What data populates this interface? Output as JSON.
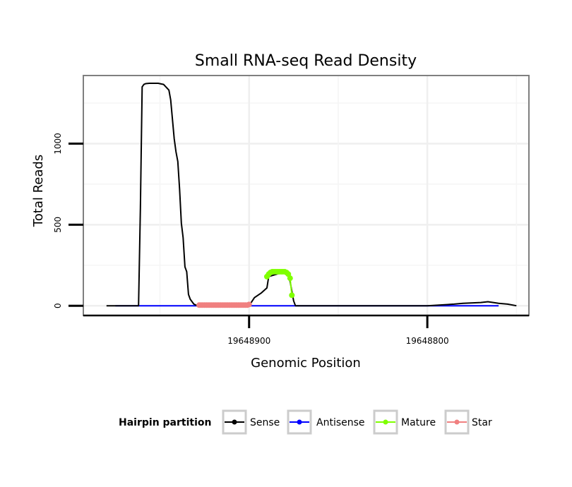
{
  "chart_data": {
    "type": "line",
    "title": "Small RNA-seq Read Density",
    "xlabel": "Genomic Position",
    "ylabel": "Total Reads",
    "x_reversed": true,
    "xlim": [
      19648993,
      19648743
    ],
    "ylim": [
      -60,
      1420
    ],
    "x_ticks": [
      {
        "value": 19648900,
        "label": "19648900"
      },
      {
        "value": 19648800,
        "label": "19648800"
      }
    ],
    "y_ticks": [
      {
        "value": 0,
        "label": "0"
      },
      {
        "value": 500,
        "label": "500"
      },
      {
        "value": 1000,
        "label": "1000"
      }
    ],
    "grid": true,
    "legend_position": "bottom",
    "legend_title": "Hairpin partition",
    "series": [
      {
        "name": "Sense",
        "color": "#000000",
        "x": [
          19648980,
          19648962,
          19648961,
          19648960,
          19648959,
          19648958,
          19648956,
          19648954,
          19648951,
          19648948,
          19648945,
          19648944,
          19648942,
          19648941,
          19648940,
          19648939,
          19648938,
          19648937,
          19648936,
          19648935,
          19648934,
          19648933,
          19648931,
          19648929,
          19648900,
          19648897,
          19648893,
          19648890,
          19648889,
          19648880,
          19648878,
          19648877,
          19648876,
          19648875,
          19648874,
          19648800,
          19648785,
          19648780,
          19648770,
          19648766,
          19648760,
          19648755,
          19648750
        ],
        "y": [
          0,
          0,
          600,
          1350,
          1365,
          1370,
          1372,
          1372,
          1372,
          1365,
          1330,
          1270,
          1030,
          950,
          890,
          720,
          510,
          420,
          240,
          210,
          70,
          40,
          10,
          0,
          0,
          50,
          80,
          110,
          180,
          210,
          190,
          150,
          90,
          30,
          0,
          0,
          10,
          15,
          20,
          25,
          15,
          10,
          0
        ]
      },
      {
        "name": "Antisense",
        "color": "#0000FF",
        "x": [
          19648975,
          19648760
        ],
        "y": [
          0,
          0
        ]
      },
      {
        "name": "Mature",
        "color": "#7FFF00",
        "points": true,
        "x": [
          19648890,
          19648889,
          19648888,
          19648887,
          19648886,
          19648885,
          19648884,
          19648883,
          19648882,
          19648881,
          19648880,
          19648879,
          19648878,
          19648877,
          19648876
        ],
        "y": [
          180,
          195,
          205,
          210,
          210,
          210,
          210,
          210,
          210,
          210,
          210,
          205,
          195,
          170,
          65
        ]
      },
      {
        "name": "Star",
        "color": "#F08080",
        "points": true,
        "x": [
          19648928,
          19648927,
          19648926,
          19648925,
          19648924,
          19648923,
          19648922,
          19648921,
          19648920,
          19648919,
          19648918,
          19648917,
          19648916,
          19648915,
          19648914,
          19648913,
          19648912,
          19648911,
          19648910,
          19648909,
          19648908,
          19648907,
          19648906,
          19648905,
          19648904,
          19648903,
          19648902,
          19648901,
          19648900
        ],
        "y": [
          4,
          4,
          4,
          4,
          4,
          4,
          4,
          4,
          4,
          4,
          4,
          4,
          4,
          4,
          4,
          4,
          4,
          4,
          4,
          4,
          4,
          4,
          4,
          4,
          4,
          4,
          4,
          4,
          8
        ]
      }
    ]
  }
}
